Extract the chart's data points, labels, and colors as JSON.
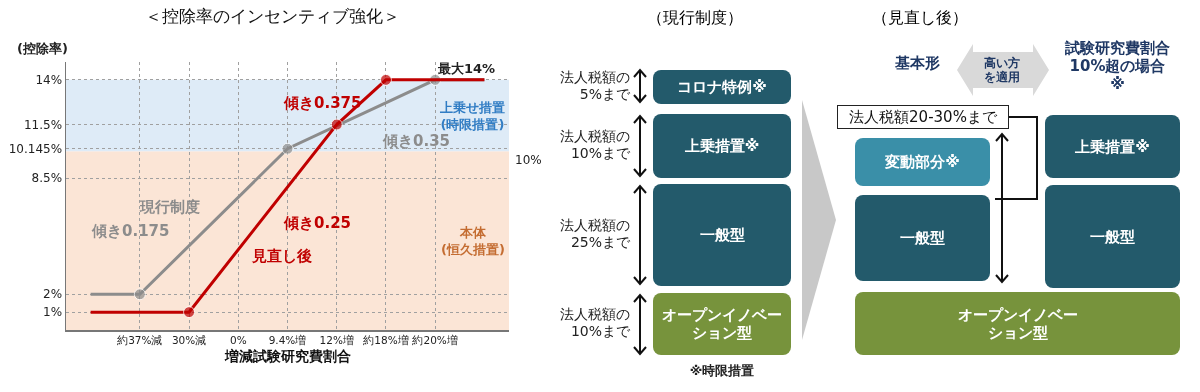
{
  "chart_data": [
    {
      "type": "line",
      "title": "＜控除率のインセンティブ強化＞",
      "xlabel": "増減試験研究費割合",
      "ylabel": "(控除率)",
      "categories": [
        null,
        "約37%減",
        "30%減",
        "0%",
        "9.4%増",
        "12%増",
        "約18%増",
        "約20%増",
        null
      ],
      "ylim": [
        0,
        15
      ],
      "yticks": [
        {
          "value": 1,
          "label": "1%"
        },
        {
          "value": 2,
          "label": "2%"
        },
        {
          "value": 8.5,
          "label": "8.5%"
        },
        {
          "value": 10.145,
          "label": "10.145%"
        },
        {
          "value": 11.5,
          "label": "11.5%"
        },
        {
          "value": 14,
          "label": "14%"
        }
      ],
      "series": [
        {
          "name": "現行制度",
          "color": "#8c8c8c",
          "values": [
            2,
            2,
            null,
            null,
            10.145,
            null,
            null,
            14,
            14
          ]
        },
        {
          "name": "見直し後",
          "color": "#c00000",
          "values": [
            1,
            null,
            1,
            null,
            null,
            11.5,
            14,
            null,
            14
          ]
        }
      ],
      "bands": [
        {
          "axis": "y",
          "from": 0,
          "to": 10,
          "label": "本体\n(恒久措置)",
          "color": "#fbe5d6"
        },
        {
          "axis": "y",
          "from": 10,
          "to": 14,
          "label": "上乗せ措置\n(時限措置)",
          "color": "#deebf7"
        }
      ],
      "annotations": [
        "傾き0.175",
        "傾き0.25",
        "傾き0.375",
        "傾き0.35",
        {
          "text": "最大14%",
          "x": "約20%増",
          "y": 14
        },
        "10%"
      ],
      "grid": true,
      "marker": "circle",
      "line_style": "solid"
    },
    {
      "type": "other",
      "title": "（現行制度）",
      "annotations": [
        "法人税額の5%まで",
        "コロナ特例※",
        "法人税額の10%まで",
        "上乗措置※",
        "法人税額の25%まで",
        "一般型",
        "法人税額の10%まで",
        "オープンイノベーション型",
        "※時限措置"
      ]
    },
    {
      "type": "other",
      "title": "（見直し後）",
      "annotations": [
        "基本形",
        "高い方を適用",
        "試験研究費割合10%超の場合※",
        "法人税額20-30%まで",
        "変動部分※",
        "一般型",
        "上乗措置※",
        "一般型",
        "オープンイノベーション型"
      ]
    }
  ]
}
